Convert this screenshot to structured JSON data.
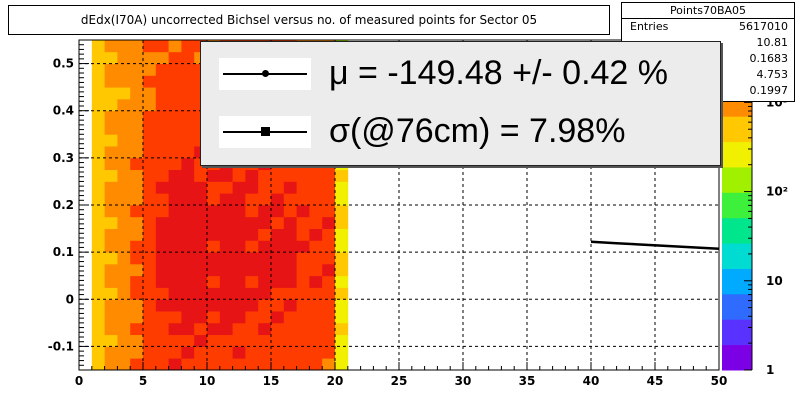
{
  "title": "dEdx(I70A) uncorrected Bichsel versus no. of measured points for Sector 05",
  "stats": {
    "name": "Points70BA05",
    "rows": [
      {
        "label": "Entries",
        "value": "5617010"
      },
      {
        "label": "",
        "value": "10.81"
      },
      {
        "label": "",
        "value": "0.1683"
      },
      {
        "label": "",
        "value": "4.753"
      },
      {
        "label": "",
        "value": "0.1997"
      }
    ]
  },
  "fit_legend": {
    "mu_text": "μ  = -149.48 +/-  0.42 %",
    "sigma_text": "σ(@76cm) =  7.98%"
  },
  "chart_data": {
    "type": "heatmap",
    "title": "dEdx(I70A) uncorrected Bichsel versus no. of measured points for Sector 05",
    "xlim": [
      0,
      50
    ],
    "ylim": [
      -0.15,
      0.55
    ],
    "x_ticks": [
      0,
      5,
      10,
      15,
      20,
      25,
      30,
      35,
      40,
      45,
      50
    ],
    "x_tick_labels": [
      "0",
      "5",
      "10",
      "15",
      "20",
      "25",
      "30",
      "35",
      "40",
      "45",
      "50"
    ],
    "y_ticks": [
      -0.1,
      0,
      0.1,
      0.2,
      0.3,
      0.4,
      0.5
    ],
    "y_tick_labels": [
      "-0.1",
      "0",
      "0.1",
      "0.2",
      "0.3",
      "0.4",
      "0.5"
    ],
    "grid": true,
    "z_scale": "log",
    "z_range": [
      1,
      5000
    ],
    "z_ticks": [
      1,
      10,
      100,
      1000
    ],
    "z_tick_labels": [
      "1",
      "10",
      "10²",
      "10³"
    ],
    "palette": [
      "#7b00e6",
      "#5a32ff",
      "#2f6bff",
      "#00aaff",
      "#00dcd2",
      "#00e68c",
      "#3cf03c",
      "#a0f000",
      "#f0f000",
      "#ffc800",
      "#ff8c00",
      "#ff3c00",
      "#e61414"
    ],
    "bin_width": 1,
    "bin_height": 0.025,
    "columns": [
      {
        "x": 1,
        "ymin": -0.15,
        "ymax": 0.55,
        "base": 500,
        "peak": 500
      },
      {
        "x": 2,
        "ymin": -0.15,
        "ymax": 0.55,
        "base": 700,
        "peak": 800
      },
      {
        "x": 3,
        "ymin": -0.15,
        "ymax": 0.55,
        "base": 800,
        "peak": 1000
      },
      {
        "x": 4,
        "ymin": -0.15,
        "ymax": 0.55,
        "base": 1100,
        "peak": 1400
      },
      {
        "x": 5,
        "ymin": -0.15,
        "ymax": 0.55,
        "base": 1300,
        "peak": 2000
      },
      {
        "x": 6,
        "ymin": -0.15,
        "ymax": 0.55,
        "base": 1500,
        "peak": 3000
      },
      {
        "x": 7,
        "ymin": -0.15,
        "ymax": 0.55,
        "base": 1500,
        "peak": 3500
      },
      {
        "x": 8,
        "ymin": -0.15,
        "ymax": 0.55,
        "base": 1500,
        "peak": 4000
      },
      {
        "x": 9,
        "ymin": -0.15,
        "ymax": 0.55,
        "base": 1500,
        "peak": 3500
      },
      {
        "x": 10,
        "ymin": -0.15,
        "ymax": 0.55,
        "base": 1500,
        "peak": 3000
      },
      {
        "x": 11,
        "ymin": -0.15,
        "ymax": 0.55,
        "base": 1500,
        "peak": 3500
      },
      {
        "x": 12,
        "ymin": -0.15,
        "ymax": 0.55,
        "base": 1500,
        "peak": 3500
      },
      {
        "x": 13,
        "ymin": -0.15,
        "ymax": 0.55,
        "base": 1500,
        "peak": 3000
      },
      {
        "x": 14,
        "ymin": -0.15,
        "ymax": 0.55,
        "base": 1500,
        "peak": 3000
      },
      {
        "x": 15,
        "ymin": -0.15,
        "ymax": 0.55,
        "base": 1500,
        "peak": 3000
      },
      {
        "x": 16,
        "ymin": -0.15,
        "ymax": 0.55,
        "base": 1500,
        "peak": 3000
      },
      {
        "x": 17,
        "ymin": -0.15,
        "ymax": 0.55,
        "base": 1300,
        "peak": 2500
      },
      {
        "x": 18,
        "ymin": -0.15,
        "ymax": 0.55,
        "base": 1100,
        "peak": 2500
      },
      {
        "x": 19,
        "ymin": -0.15,
        "ymax": 0.55,
        "base": 800,
        "peak": 2500
      },
      {
        "x": 20,
        "ymin": -0.15,
        "ymax": 0.55,
        "base": 200,
        "peak": 400
      }
    ],
    "series": [
      {
        "x": [
          40,
          42,
          44,
          46,
          48,
          50
        ],
        "y": [
          0.122,
          0.119,
          0.116,
          0.113,
          0.11,
          0.107
        ]
      }
    ]
  }
}
